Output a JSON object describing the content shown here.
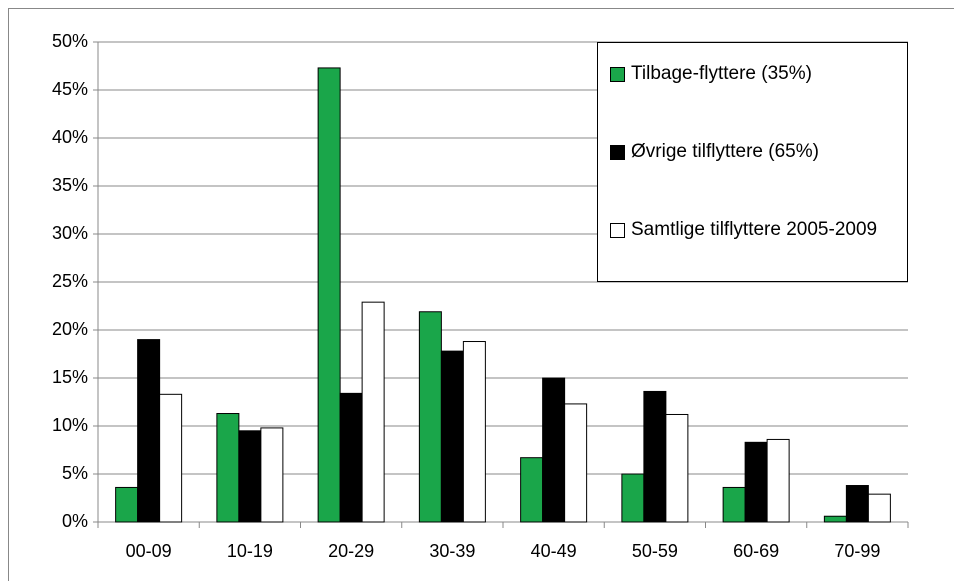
{
  "chart_data": {
    "type": "bar",
    "categories": [
      "00-09",
      "10-19",
      "20-29",
      "30-39",
      "40-49",
      "50-59",
      "60-69",
      "70-99"
    ],
    "series": [
      {
        "name": "Tilbage-flyttere (35%)",
        "color": "#1aa64a",
        "values": [
          3.6,
          11.3,
          47.3,
          21.9,
          6.7,
          5.0,
          3.6,
          0.6
        ]
      },
      {
        "name": "Øvrige tilflyttere (65%)",
        "color": "#000000",
        "values": [
          19.0,
          9.5,
          13.4,
          17.8,
          15.0,
          13.6,
          8.3,
          3.8
        ]
      },
      {
        "name": "Samtlige tilflyttere 2005-2009",
        "color": "#ffffff",
        "values": [
          13.3,
          9.8,
          22.9,
          18.8,
          12.3,
          11.2,
          8.6,
          2.9
        ]
      }
    ],
    "ylim": [
      0,
      50
    ],
    "yticks": [
      {
        "value": 0,
        "label": "0%"
      },
      {
        "value": 5,
        "label": "5%"
      },
      {
        "value": 10,
        "label": "10%"
      },
      {
        "value": 15,
        "label": "15%"
      },
      {
        "value": 20,
        "label": "20%"
      },
      {
        "value": 25,
        "label": "25%"
      },
      {
        "value": 30,
        "label": "30%"
      },
      {
        "value": 35,
        "label": "35%"
      },
      {
        "value": 40,
        "label": "40%"
      },
      {
        "value": 45,
        "label": "45%"
      },
      {
        "value": 50,
        "label": "50%"
      }
    ],
    "grid": true
  }
}
